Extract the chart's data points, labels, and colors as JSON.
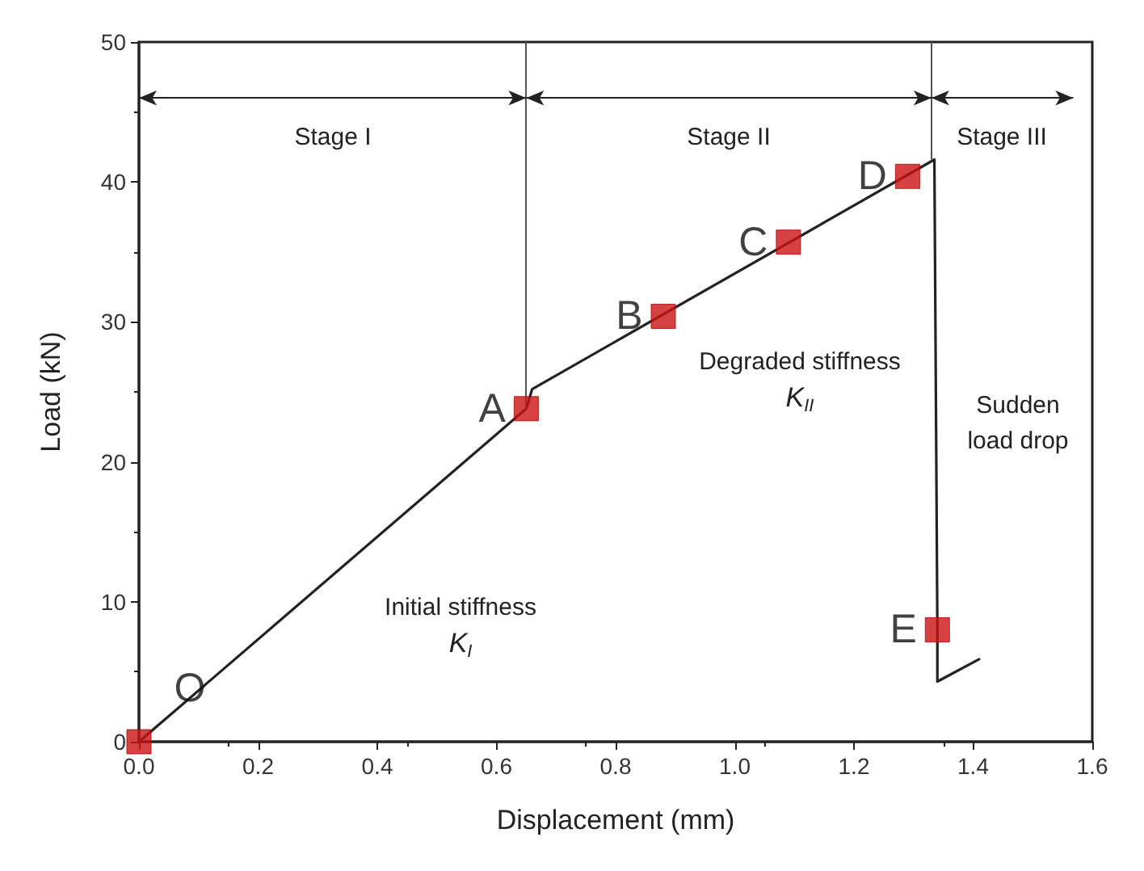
{
  "chart_data": {
    "type": "line",
    "xlabel": "Displacement (mm)",
    "ylabel": "Load (kN)",
    "xlim": [
      0,
      1.6
    ],
    "ylim": [
      0,
      50
    ],
    "xticks": [
      {
        "value": 0,
        "label": "0.0"
      },
      0.2,
      0.4,
      0.6,
      0.8,
      {
        "value": 1,
        "label": "1.0"
      },
      1.2,
      1.4,
      1.6
    ],
    "yticks": [
      0,
      10,
      20,
      30,
      40,
      50
    ],
    "grid": false,
    "series": [
      {
        "color": "#222222",
        "marker": "none",
        "x": [
          0,
          0.65,
          0.66,
          1.335,
          1.34,
          1.34,
          1.41
        ],
        "values": [
          0,
          23.8,
          25.2,
          41.6,
          8.0,
          4.3,
          5.9
        ]
      },
      {
        "type": "scatter",
        "color": "#cc1111",
        "marker": "square",
        "x": [
          0,
          0.65,
          0.88,
          1.09,
          1.29,
          1.34
        ],
        "values": [
          0,
          23.8,
          30.4,
          35.7,
          40.4,
          8.0
        ],
        "value_labels": [
          "O",
          "A",
          "B",
          "C",
          "D",
          "E"
        ]
      }
    ],
    "ref_lines": [
      {
        "axis": "x",
        "value": 0.65
      },
      {
        "axis": "x",
        "value": 1.33
      }
    ],
    "annotations": [
      "Stage I",
      "Stage II",
      "Stage III",
      "Initial stiffness\nK$_{I}$",
      "Degraded stiffness\nK$_{II}$",
      "Sudden\nload drop"
    ]
  }
}
